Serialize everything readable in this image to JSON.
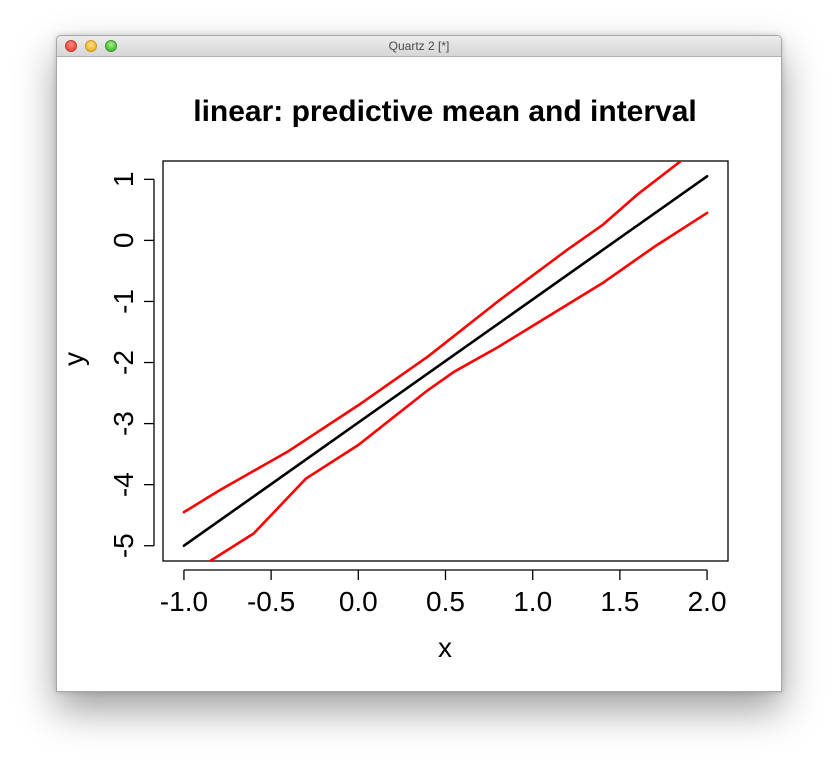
{
  "window": {
    "title": "Quartz 2 [*]"
  },
  "chart_data": {
    "type": "line",
    "title": "linear: predictive mean and interval",
    "xlabel": "x",
    "ylabel": "y",
    "xlim": [
      -1.12,
      2.12
    ],
    "ylim": [
      -5.25,
      1.3
    ],
    "xticks": [
      -1.0,
      -0.5,
      0.0,
      0.5,
      1.0,
      1.5,
      2.0
    ],
    "xtick_labels": [
      "-1.0",
      "-0.5",
      "0.0",
      "0.5",
      "1.0",
      "1.5",
      "2.0"
    ],
    "yticks": [
      -5,
      -4,
      -3,
      -2,
      -1,
      0,
      1
    ],
    "ytick_labels": [
      "-5",
      "-4",
      "-3",
      "-2",
      "-1",
      "0",
      "1"
    ],
    "grid": false,
    "legend": "none",
    "series": [
      {
        "color": "#000000",
        "role": "mean",
        "points": [
          [
            -1.0,
            -5.0
          ],
          [
            2.0,
            1.05
          ]
        ]
      },
      {
        "color": "#ff0000",
        "role": "upper",
        "points": [
          [
            -1.0,
            -4.45
          ],
          [
            -0.8,
            -4.1
          ],
          [
            -0.4,
            -3.45
          ],
          [
            0.0,
            -2.7
          ],
          [
            0.4,
            -1.9
          ],
          [
            0.8,
            -1.0
          ],
          [
            1.2,
            -0.15
          ],
          [
            1.4,
            0.25
          ],
          [
            1.6,
            0.75
          ],
          [
            1.85,
            1.3
          ]
        ]
      },
      {
        "color": "#ff0000",
        "role": "lower",
        "points": [
          [
            -0.85,
            -5.25
          ],
          [
            -0.6,
            -4.8
          ],
          [
            -0.3,
            -3.9
          ],
          [
            0.0,
            -3.35
          ],
          [
            0.4,
            -2.45
          ],
          [
            0.55,
            -2.15
          ],
          [
            0.8,
            -1.75
          ],
          [
            1.0,
            -1.4
          ],
          [
            1.4,
            -0.7
          ],
          [
            1.7,
            -0.1
          ],
          [
            2.0,
            0.45
          ]
        ]
      }
    ]
  }
}
